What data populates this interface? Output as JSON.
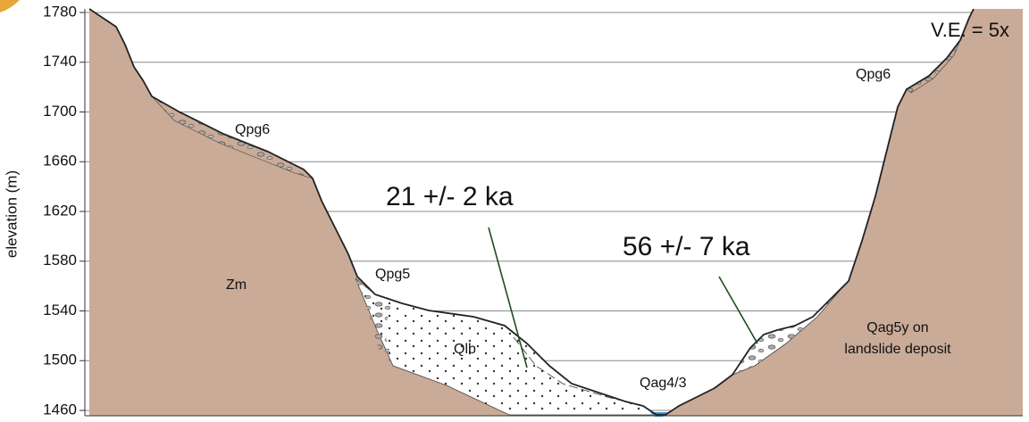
{
  "axis": {
    "label": "elevation (m)",
    "ticks": [
      1780,
      1740,
      1700,
      1660,
      1620,
      1580,
      1540,
      1500,
      1460
    ]
  },
  "ve_label": "V.E. = 5x",
  "units": {
    "qpg6_left": "Qpg6",
    "qpg6_right": "Qpg6",
    "qpg5": "Qpg5",
    "zm": "Zm",
    "qlb": "Qlb",
    "qag43": "Qag4/3",
    "qag5y": [
      "Qag5y on",
      "landslide deposit"
    ]
  },
  "ages": {
    "left": "21 +/- 2 ka",
    "right": "56 +/- 7 ka"
  }
}
